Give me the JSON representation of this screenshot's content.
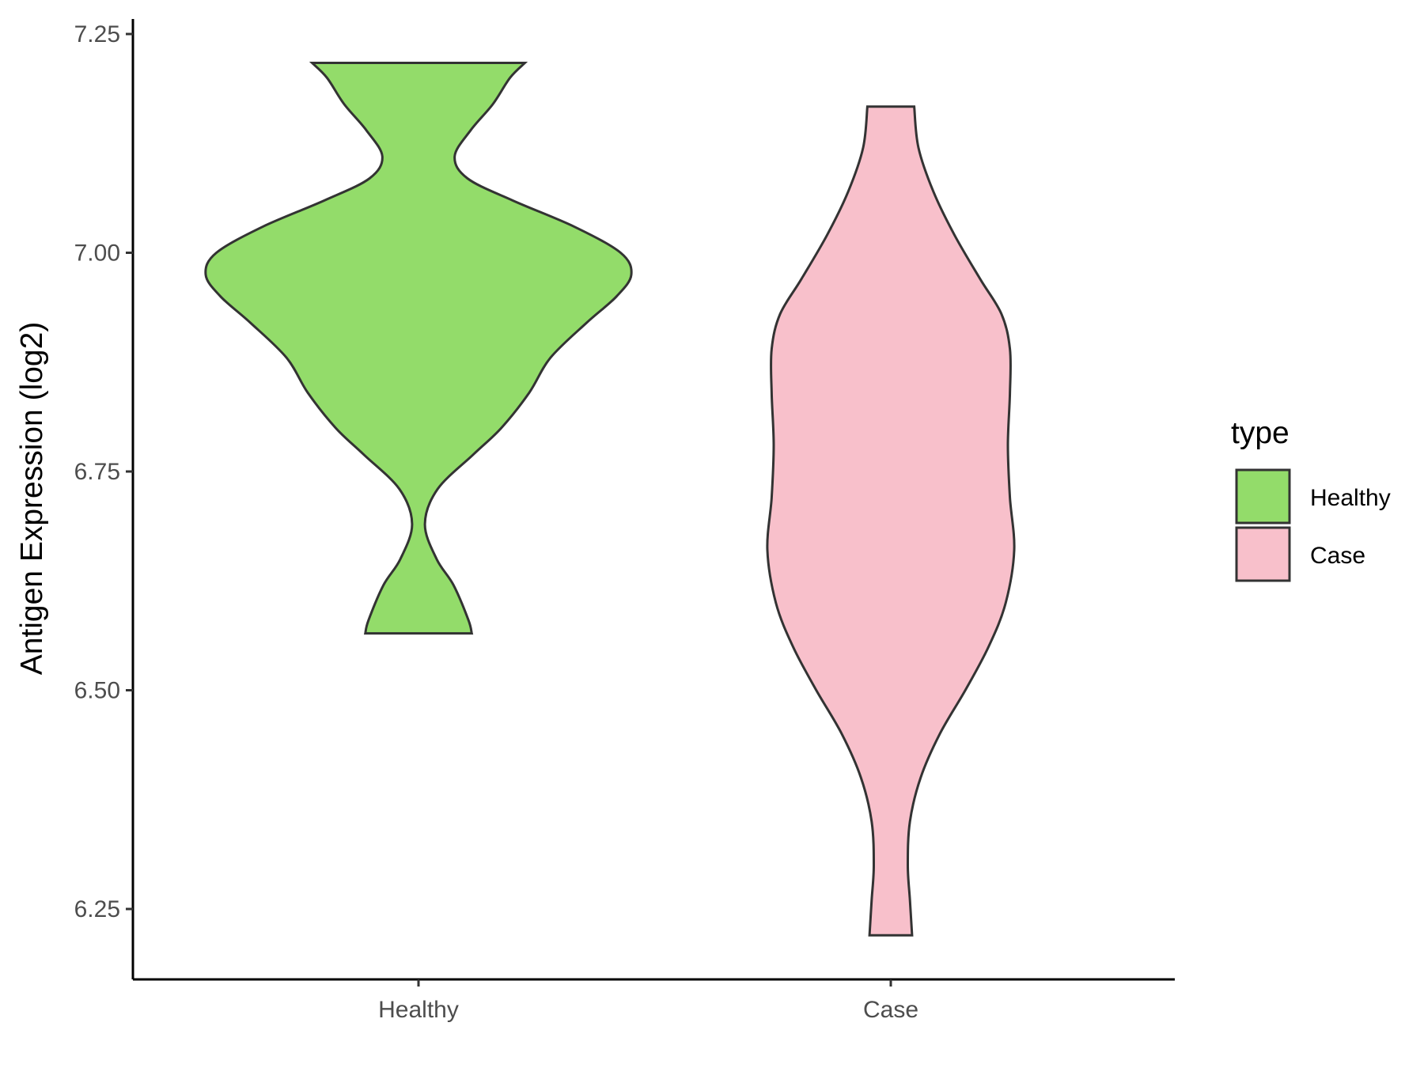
{
  "chart_data": {
    "type": "violin",
    "title": "",
    "xlabel": "",
    "ylabel": "Antigen Expression (log2)",
    "ylim": [
      6.17,
      7.27
    ],
    "yticks": [
      6.25,
      6.5,
      6.75,
      7.0,
      7.25
    ],
    "ytick_labels": [
      "6.25",
      "6.50",
      "6.75",
      "7.00",
      "7.25"
    ],
    "categories": [
      "Healthy",
      "Case"
    ],
    "grid": false,
    "legend": {
      "title": "type",
      "position": "right",
      "entries": [
        {
          "label": "Healthy",
          "color": "#93dc6a"
        },
        {
          "label": "Case",
          "color": "#f8c0cb"
        }
      ]
    },
    "series": [
      {
        "name": "Healthy",
        "color": "#93dc6a",
        "density": [
          {
            "y": 6.565,
            "w": 0.25
          },
          {
            "y": 6.58,
            "w": 0.235
          },
          {
            "y": 6.62,
            "w": 0.165
          },
          {
            "y": 6.65,
            "w": 0.085
          },
          {
            "y": 6.69,
            "w": 0.03
          },
          {
            "y": 6.73,
            "w": 0.09
          },
          {
            "y": 6.77,
            "w": 0.26
          },
          {
            "y": 6.8,
            "w": 0.39
          },
          {
            "y": 6.84,
            "w": 0.52
          },
          {
            "y": 6.88,
            "w": 0.62
          },
          {
            "y": 6.92,
            "w": 0.79
          },
          {
            "y": 6.95,
            "w": 0.93
          },
          {
            "y": 6.975,
            "w": 1.0
          },
          {
            "y": 7.0,
            "w": 0.95
          },
          {
            "y": 7.03,
            "w": 0.73
          },
          {
            "y": 7.06,
            "w": 0.44
          },
          {
            "y": 7.085,
            "w": 0.23
          },
          {
            "y": 7.11,
            "w": 0.17
          },
          {
            "y": 7.14,
            "w": 0.245
          },
          {
            "y": 7.17,
            "w": 0.35
          },
          {
            "y": 7.2,
            "w": 0.43
          },
          {
            "y": 7.217,
            "w": 0.5
          }
        ]
      },
      {
        "name": "Case",
        "color": "#f8c0cb",
        "density": [
          {
            "y": 6.22,
            "w": 0.1
          },
          {
            "y": 6.26,
            "w": 0.09
          },
          {
            "y": 6.3,
            "w": 0.08
          },
          {
            "y": 6.35,
            "w": 0.09
          },
          {
            "y": 6.4,
            "w": 0.14
          },
          {
            "y": 6.45,
            "w": 0.23
          },
          {
            "y": 6.5,
            "w": 0.35
          },
          {
            "y": 6.55,
            "w": 0.46
          },
          {
            "y": 6.6,
            "w": 0.54
          },
          {
            "y": 6.66,
            "w": 0.58
          },
          {
            "y": 6.72,
            "w": 0.56
          },
          {
            "y": 6.78,
            "w": 0.55
          },
          {
            "y": 6.84,
            "w": 0.56
          },
          {
            "y": 6.89,
            "w": 0.56
          },
          {
            "y": 6.93,
            "w": 0.52
          },
          {
            "y": 6.97,
            "w": 0.42
          },
          {
            "y": 7.02,
            "w": 0.3
          },
          {
            "y": 7.07,
            "w": 0.2
          },
          {
            "y": 7.12,
            "w": 0.13
          },
          {
            "y": 7.167,
            "w": 0.11
          }
        ]
      }
    ]
  }
}
